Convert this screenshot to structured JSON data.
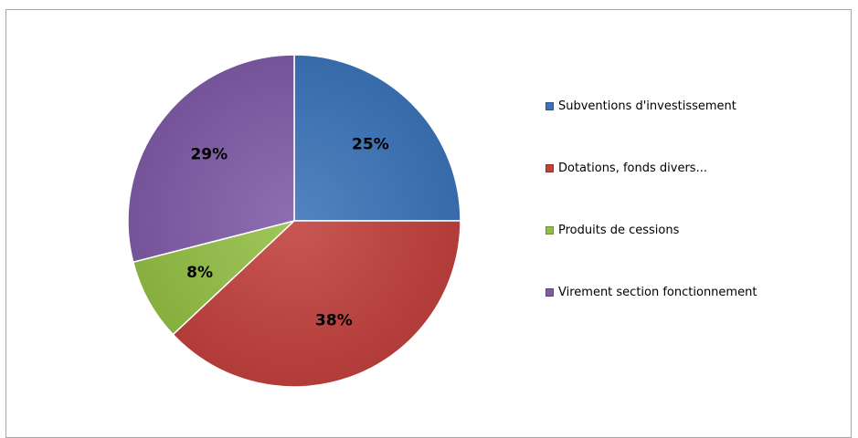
{
  "chart_data": {
    "type": "pie",
    "start_angle": "12 o'clock",
    "direction": "clockwise",
    "legend_position": "right",
    "slices": [
      {
        "name": "Subventions d'investissement",
        "value": 25,
        "label": "25%",
        "color": "#3b73b8"
      },
      {
        "name": "Dotations, fonds divers...",
        "value": 38,
        "label": "38%",
        "color": "#c0403d"
      },
      {
        "name": "Produits de cessions",
        "value": 8,
        "label": "8%",
        "color": "#93be45"
      },
      {
        "name": "Virement section fonctionnement",
        "value": 29,
        "label": "29%",
        "color": "#7f5aa6"
      }
    ]
  },
  "legend": {
    "items": [
      {
        "label": "Subventions d'investissement",
        "color": "#3b73b8"
      },
      {
        "label": "Dotations, fonds divers...",
        "color": "#c0403d"
      },
      {
        "label": "Produits de cessions",
        "color": "#93be45"
      },
      {
        "label": "Virement section fonctionnement",
        "color": "#7f5aa6"
      }
    ]
  }
}
